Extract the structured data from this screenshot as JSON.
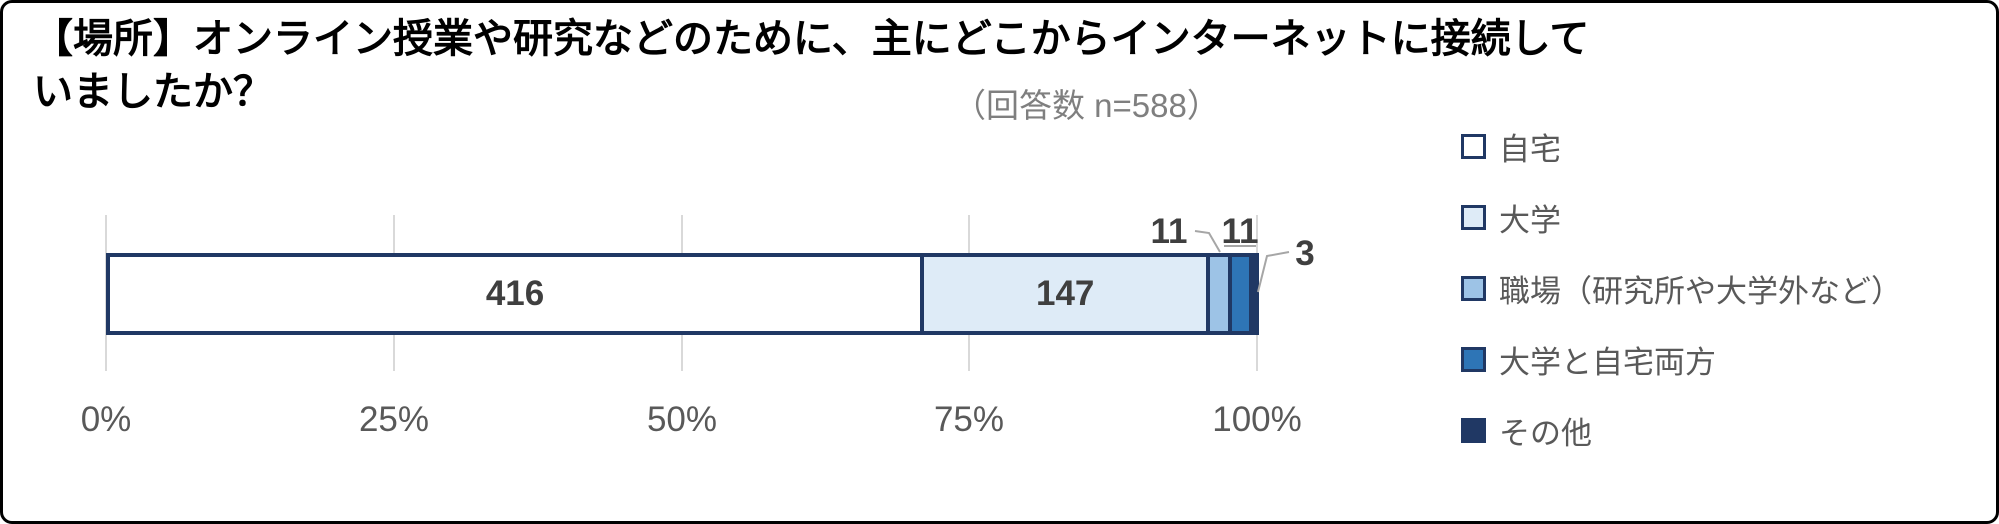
{
  "title": {
    "line1": "【場所】オンライン授業や研究などのために、主にどこからインターネットに接続して",
    "line2": "いましたか？",
    "full": "【場所】オンライン授業や研究などのために、主にどこからインターネットに接続していましたか？"
  },
  "subtitle": "（回答数 n=588）",
  "chart_data": {
    "type": "bar",
    "orientation": "horizontal",
    "stacked": true,
    "percent_stacked": true,
    "title": "【場所】オンライン授業や研究などのために、主にどこからインターネットに接続していましたか？",
    "subtitle": "（回答数 n=588）",
    "n_total": 588,
    "series": [
      {
        "name": "自宅",
        "value": 416,
        "percent": 70.7,
        "color": "#FFFFFF",
        "label_placement": "inside"
      },
      {
        "name": "大学",
        "value": 147,
        "percent": 25.0,
        "color": "#DEEBF7",
        "label_placement": "inside"
      },
      {
        "name": "職場（研究所や大学外など）",
        "value": 11,
        "percent": 1.9,
        "color": "#9DC3E6",
        "label_placement": "outside-above"
      },
      {
        "name": "大学と自宅両方",
        "value": 11,
        "percent": 1.9,
        "color": "#2E75B6",
        "label_placement": "outside-above"
      },
      {
        "name": "その他",
        "value": 3,
        "percent": 0.5,
        "color": "#203864",
        "label_placement": "outside-right"
      }
    ],
    "x_axis": {
      "tick_labels": [
        "0%",
        "25%",
        "50%",
        "75%",
        "100%"
      ],
      "range_pct": [
        0,
        100
      ],
      "gridlines": true
    },
    "legend_position": "right",
    "bar_border_color": "#203864",
    "gridline_color": "#D9D9D9",
    "axis_text_color": "#595959",
    "data_label_color": "#3F3F3F",
    "leader_line_color": "#A6A6A6"
  }
}
